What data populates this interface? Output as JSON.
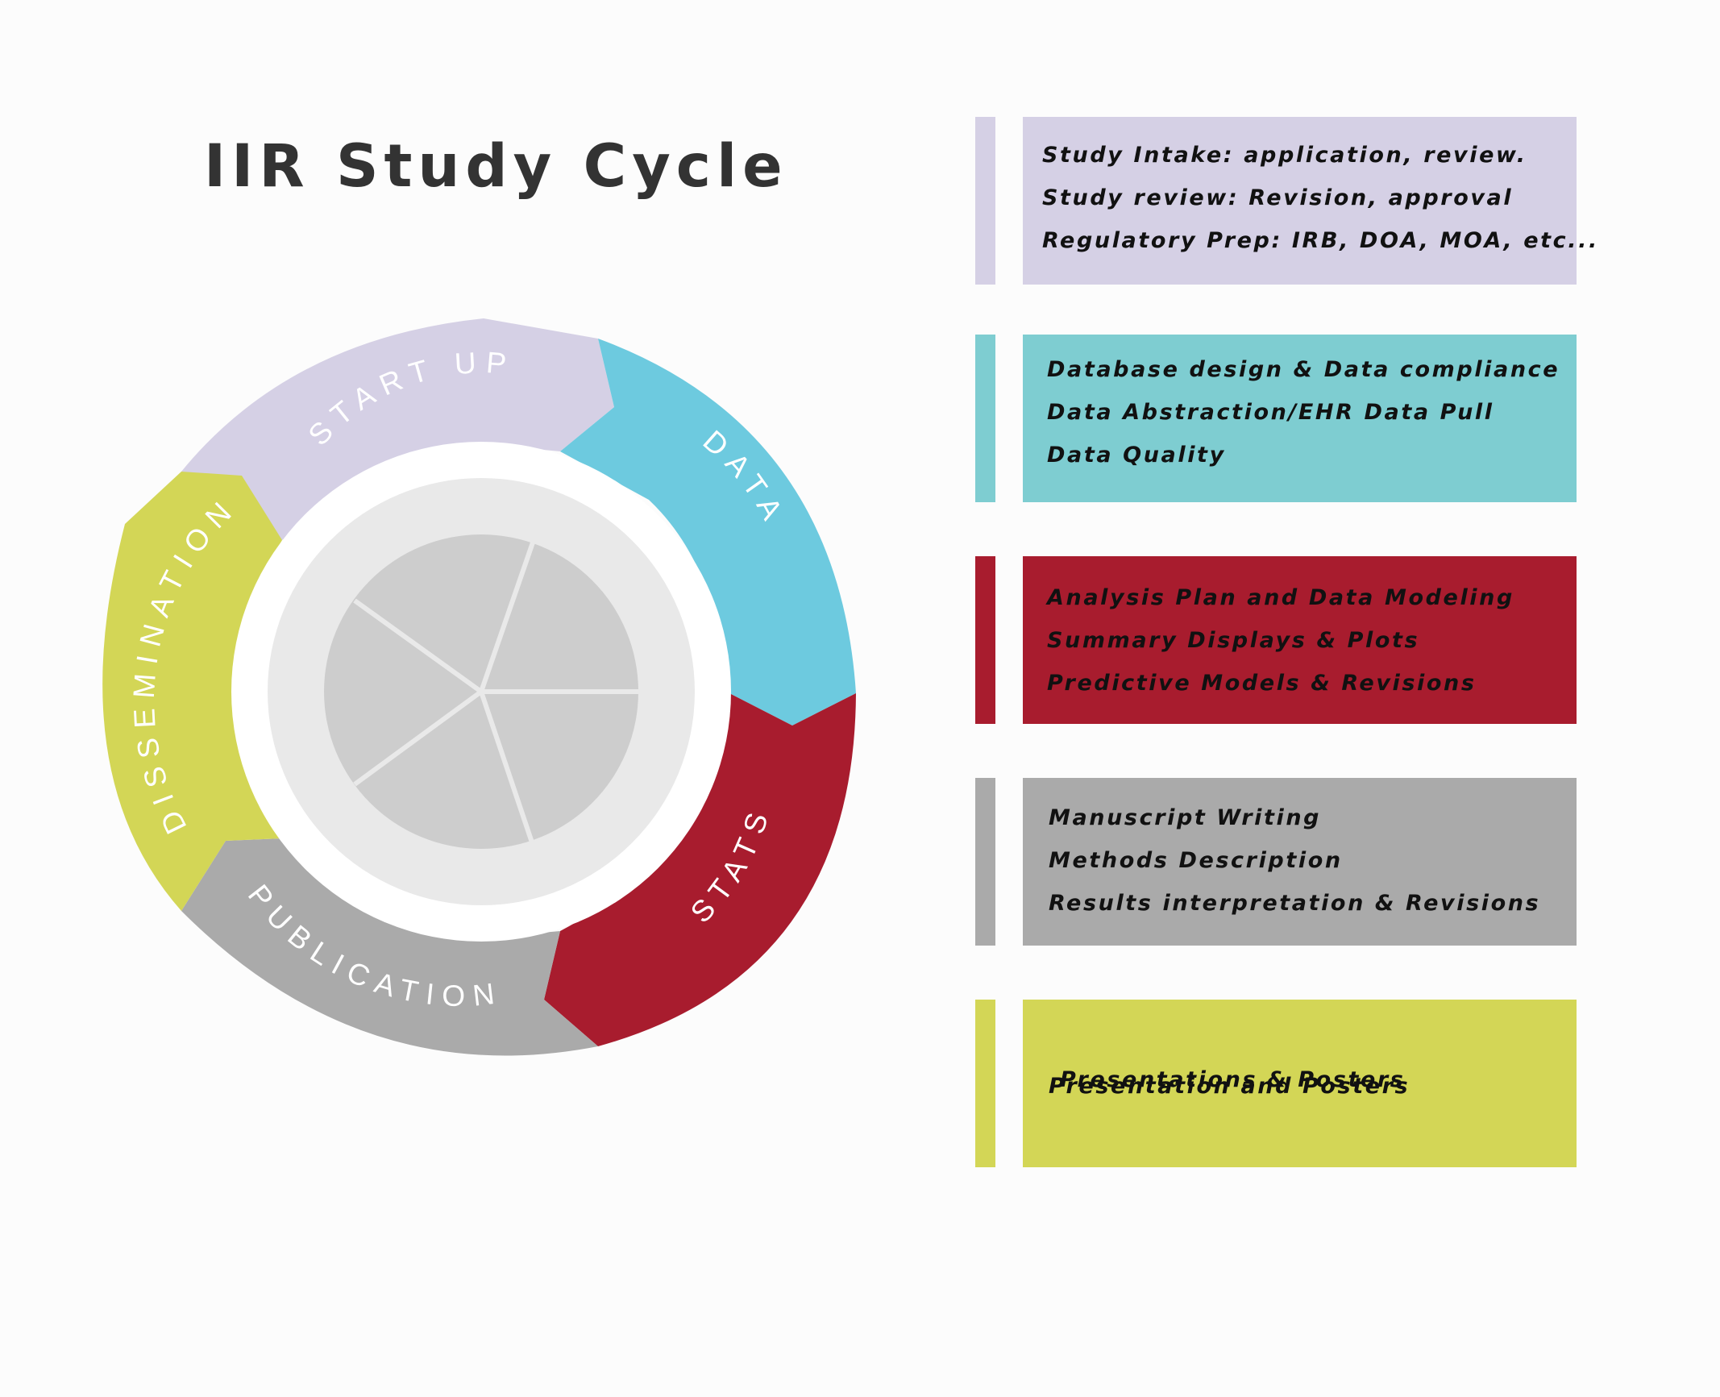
{
  "title": "IIR Study Cycle",
  "colors": {
    "start_up": "#d5d0e5",
    "data": "#6dcadf",
    "stats": "#a81c2e",
    "publication": "#aaaaaa",
    "dissemination": "#d3d656",
    "inner_ring": "#e9e9e9",
    "pie_slices": "#cdcdcd",
    "teal_panel": "#7ecdd1"
  },
  "cycle": {
    "stages": [
      {
        "label": "START UP"
      },
      {
        "label": "DATA"
      },
      {
        "label": "STATS"
      },
      {
        "label": "PUBLICATION"
      },
      {
        "label": "DISSEMINATION"
      }
    ]
  },
  "panels": [
    {
      "lines": [
        "Study Intake: application, review.",
        "Study review: Revision, approval",
        "Regulatory Prep: IRB, DOA, MOA, etc..."
      ]
    },
    {
      "lines": [
        "Database design & Data compliance",
        "Data Abstraction/EHR Data Pull",
        "Data Quality"
      ]
    },
    {
      "lines": [
        "Analysis Plan and Data Modeling",
        "Summary Displays & Plots",
        "Predictive Models & Revisions"
      ]
    },
    {
      "lines": [
        "Manuscript Writing",
        "Methods Description",
        "Results interpretation & Revisions"
      ]
    },
    {
      "lines": [
        "Presentations & Posters",
        "Presentation and Posters"
      ]
    }
  ]
}
